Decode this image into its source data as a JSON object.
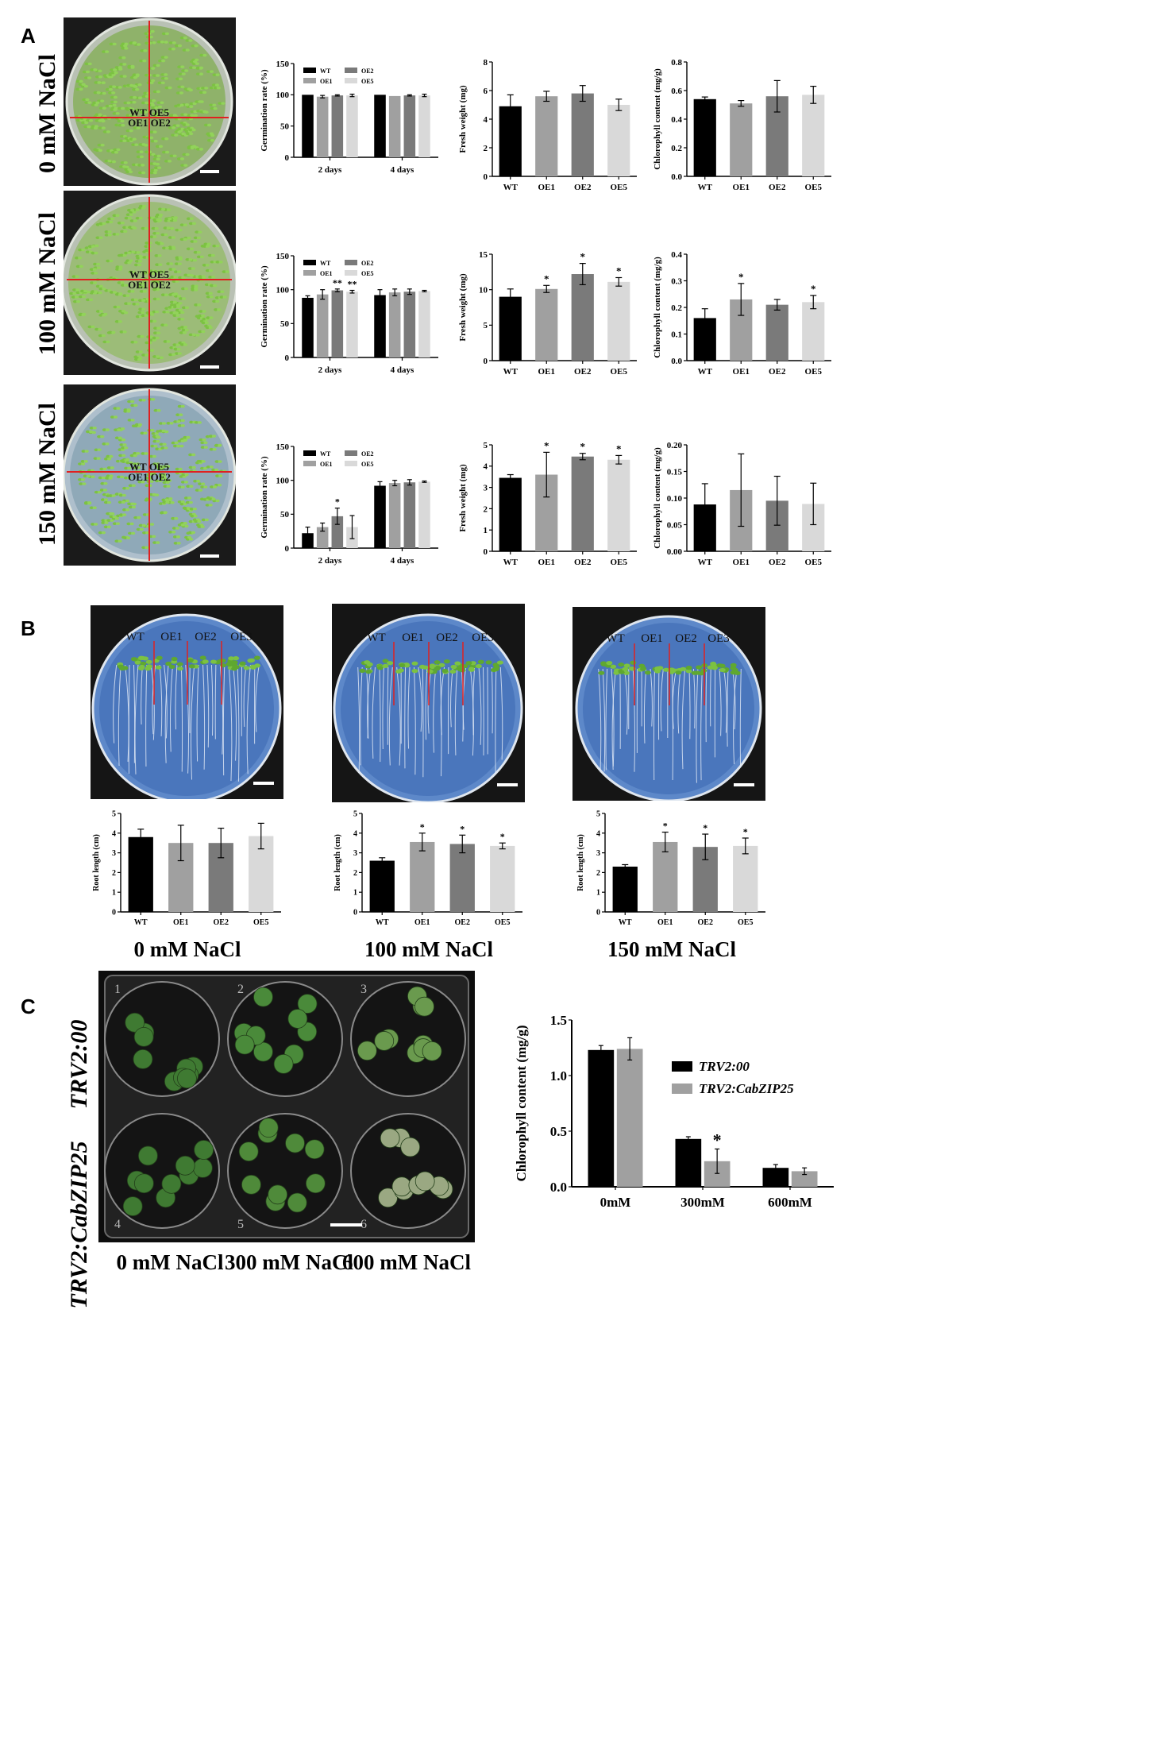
{
  "panels": {
    "A": "A",
    "B": "B",
    "C": "C"
  },
  "conditions_A": [
    "0 mM NaCl",
    "100 mM NaCl",
    "150 mM NaCl"
  ],
  "photo_A_labels": [
    "WT OE5",
    "OE1 OE2"
  ],
  "photo_B_labels": [
    "WT",
    "OE1",
    "OE2",
    "OE3"
  ],
  "conditions_B": [
    "0 mM NaCl",
    "100 mM NaCl",
    "150 mM NaCl"
  ],
  "photo_C_rows": [
    "TRV2:00",
    "TRV2:CabZIP25"
  ],
  "photo_C_well_numbers": [
    "1",
    "2",
    "3",
    "4",
    "5",
    "6"
  ],
  "conditions_C": [
    "0 mM NaCl",
    "300 mM NaCl",
    "600 mM NaCl"
  ],
  "colors": {
    "WT": "#000000",
    "OE1": "#a0a0a0",
    "OE2": "#7a7a7a",
    "OE5": "#d9d9d9",
    "TRV2:00": "#000000",
    "TRV2:CabZIP25": "#a0a0a0",
    "seedling": "#7cc242",
    "line": "#e02020"
  },
  "chart_data": [
    {
      "id": "A-0-germ",
      "type": "bar",
      "ylabel": "Germination rate (%)",
      "ylim": [
        0,
        150
      ],
      "yticks": [
        "0",
        "50",
        "100",
        "150"
      ],
      "categories": [
        "2 days",
        "4 days"
      ],
      "series": [
        {
          "name": "WT",
          "values": [
            100,
            100
          ],
          "err": [
            0,
            0
          ]
        },
        {
          "name": "OE1",
          "values": [
            97,
            98
          ],
          "err": [
            2,
            0
          ]
        },
        {
          "name": "OE2",
          "values": [
            99,
            99
          ],
          "err": [
            1,
            1
          ]
        },
        {
          "name": "OE5",
          "values": [
            99,
            99
          ],
          "err": [
            2,
            2
          ]
        }
      ],
      "legend": [
        "WT",
        "OE2",
        "OE1",
        "OE5"
      ],
      "sig": [
        [
          "",
          "",
          "",
          ""
        ],
        [
          "",
          "",
          "",
          ""
        ]
      ]
    },
    {
      "id": "A-0-fw",
      "type": "bar",
      "ylabel": "Fresh weight (mg)",
      "ylim": [
        0,
        8
      ],
      "yticks": [
        "0",
        "2",
        "4",
        "6",
        "8"
      ],
      "categories": [
        "WT",
        "OE1",
        "OE2",
        "OE5"
      ],
      "values": [
        4.9,
        5.6,
        5.8,
        5.0
      ],
      "err": [
        0.8,
        0.35,
        0.55,
        0.4
      ],
      "sig": [
        "",
        "",
        "",
        ""
      ]
    },
    {
      "id": "A-0-chl",
      "type": "bar",
      "ylabel": "Chlorophyll content (mg/g)",
      "ylim": [
        0,
        0.8
      ],
      "yticks": [
        "0.0",
        "0.2",
        "0.4",
        "0.6",
        "0.8"
      ],
      "categories": [
        "WT",
        "OE1",
        "OE2",
        "OE5"
      ],
      "values": [
        0.54,
        0.51,
        0.56,
        0.57
      ],
      "err": [
        0.015,
        0.02,
        0.11,
        0.06
      ],
      "sig": [
        "",
        "",
        "",
        ""
      ]
    },
    {
      "id": "A-100-germ",
      "type": "bar",
      "ylabel": "Germination rate (%)",
      "ylim": [
        0,
        150
      ],
      "yticks": [
        "0",
        "50",
        "100",
        "150"
      ],
      "categories": [
        "2 days",
        "4 days"
      ],
      "series": [
        {
          "name": "WT",
          "values": [
            88,
            92
          ],
          "err": [
            3,
            8
          ]
        },
        {
          "name": "OE1",
          "values": [
            93,
            96
          ],
          "err": [
            7,
            5
          ]
        },
        {
          "name": "OE2",
          "values": [
            99,
            97
          ],
          "err": [
            2,
            4
          ]
        },
        {
          "name": "OE5",
          "values": [
            97,
            98
          ],
          "err": [
            2,
            1
          ]
        }
      ],
      "legend": [
        "WT",
        "OE2",
        "OE1",
        "OE5"
      ],
      "sig": [
        [
          "",
          "",
          "**",
          "**"
        ],
        [
          "",
          "",
          "",
          ""
        ]
      ]
    },
    {
      "id": "A-100-fw",
      "type": "bar",
      "ylabel": "Fresh weight (mg)",
      "ylim": [
        0,
        15
      ],
      "yticks": [
        "0",
        "5",
        "10",
        "15"
      ],
      "categories": [
        "WT",
        "OE1",
        "OE2",
        "OE5"
      ],
      "values": [
        9.0,
        10.1,
        12.2,
        11.1
      ],
      "err": [
        1.1,
        0.5,
        1.5,
        0.6
      ],
      "sig": [
        "",
        "*",
        "*",
        "*"
      ]
    },
    {
      "id": "A-100-chl",
      "type": "bar",
      "ylabel": "Chlorophyll content (mg/g)",
      "ylim": [
        0,
        0.4
      ],
      "yticks": [
        "0.0",
        "0.1",
        "0.2",
        "0.3",
        "0.4"
      ],
      "categories": [
        "WT",
        "OE1",
        "OE2",
        "OE5"
      ],
      "values": [
        0.16,
        0.23,
        0.21,
        0.22
      ],
      "err": [
        0.035,
        0.06,
        0.02,
        0.025
      ],
      "sig": [
        "",
        "*",
        "",
        "*"
      ]
    },
    {
      "id": "A-150-germ",
      "type": "bar",
      "ylabel": "Germination rate (%)",
      "ylim": [
        0,
        150
      ],
      "yticks": [
        "0",
        "50",
        "100",
        "150"
      ],
      "categories": [
        "2 days",
        "4 days"
      ],
      "series": [
        {
          "name": "WT",
          "values": [
            22,
            92
          ],
          "err": [
            9,
            6
          ]
        },
        {
          "name": "OE1",
          "values": [
            31,
            96
          ],
          "err": [
            6,
            4
          ]
        },
        {
          "name": "OE2",
          "values": [
            47,
            97
          ],
          "err": [
            12,
            4
          ]
        },
        {
          "name": "OE5",
          "values": [
            31,
            98
          ],
          "err": [
            17,
            1
          ]
        }
      ],
      "legend": [
        "WT",
        "OE2",
        "OE1",
        "OE5"
      ],
      "sig": [
        [
          "",
          "",
          "*",
          ""
        ],
        [
          "",
          "",
          "",
          ""
        ]
      ]
    },
    {
      "id": "A-150-fw",
      "type": "bar",
      "ylabel": "Fresh weight (mg)",
      "ylim": [
        0,
        5
      ],
      "yticks": [
        "0",
        "1",
        "2",
        "3",
        "4",
        "5"
      ],
      "categories": [
        "WT",
        "OE1",
        "OE2",
        "OE5"
      ],
      "values": [
        3.45,
        3.6,
        4.45,
        4.3
      ],
      "err": [
        0.15,
        1.05,
        0.15,
        0.2
      ],
      "sig": [
        "",
        "*",
        "*",
        "*"
      ]
    },
    {
      "id": "A-150-chl",
      "type": "bar",
      "ylabel": "Chlorophyll content (mg/g)",
      "ylim": [
        0,
        0.2
      ],
      "yticks": [
        "0.00",
        "0.05",
        "0.10",
        "0.15",
        "0.20"
      ],
      "categories": [
        "WT",
        "OE1",
        "OE2",
        "OE5"
      ],
      "values": [
        0.088,
        0.115,
        0.095,
        0.089
      ],
      "err": [
        0.039,
        0.068,
        0.046,
        0.039
      ],
      "sig": [
        "",
        "",
        "",
        ""
      ]
    },
    {
      "id": "B-0-root",
      "type": "bar",
      "ylabel": "Root length (cm)",
      "ylim": [
        0,
        5
      ],
      "yticks": [
        "0",
        "1",
        "2",
        "3",
        "4",
        "5"
      ],
      "categories": [
        "WT",
        "OE1",
        "OE2",
        "OE5"
      ],
      "values": [
        3.8,
        3.5,
        3.5,
        3.85
      ],
      "err": [
        0.4,
        0.9,
        0.75,
        0.65
      ],
      "sig": [
        "",
        "",
        "",
        ""
      ]
    },
    {
      "id": "B-100-root",
      "type": "bar",
      "ylabel": "Root length (cm)",
      "ylim": [
        0,
        5
      ],
      "yticks": [
        "0",
        "1",
        "2",
        "3",
        "4",
        "5"
      ],
      "categories": [
        "WT",
        "OE1",
        "OE2",
        "OE5"
      ],
      "values": [
        2.6,
        3.55,
        3.45,
        3.35
      ],
      "err": [
        0.15,
        0.45,
        0.45,
        0.15
      ],
      "sig": [
        "",
        "*",
        "*",
        "*"
      ]
    },
    {
      "id": "B-150-root",
      "type": "bar",
      "ylabel": "Root length (cm)",
      "ylim": [
        0,
        5
      ],
      "yticks": [
        "0",
        "1",
        "2",
        "3",
        "4",
        "5"
      ],
      "categories": [
        "WT",
        "OE1",
        "OE2",
        "OE5"
      ],
      "values": [
        2.3,
        3.55,
        3.3,
        3.35
      ],
      "err": [
        0.1,
        0.5,
        0.65,
        0.4
      ],
      "sig": [
        "",
        "*",
        "*",
        "*"
      ]
    },
    {
      "id": "C-chl",
      "type": "bar",
      "ylabel": "Chlorophyll content (mg/g)",
      "ylim": [
        0,
        1.5
      ],
      "yticks": [
        "0.0",
        "0.5",
        "1.0",
        "1.5"
      ],
      "categories": [
        "0mM",
        "300mM",
        "600mM"
      ],
      "series": [
        {
          "name": "TRV2:00",
          "values": [
            1.23,
            0.43,
            0.17
          ],
          "err": [
            0.04,
            0.02,
            0.03
          ]
        },
        {
          "name": "TRV2:CabZIP25",
          "values": [
            1.24,
            0.23,
            0.14
          ],
          "err": [
            0.1,
            0.11,
            0.03
          ]
        }
      ],
      "legend": [
        "TRV2:00",
        "TRV2:CabZIP25"
      ],
      "sig": [
        [
          "",
          ""
        ],
        [
          "",
          "*"
        ],
        [
          "",
          ""
        ]
      ]
    }
  ]
}
